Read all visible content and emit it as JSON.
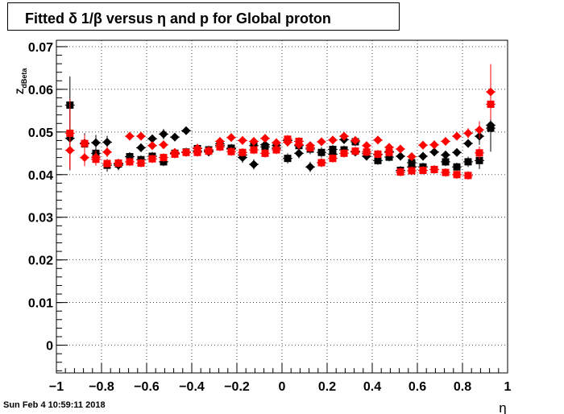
{
  "title": "Fitted δ 1/β versus η and p for Global proton",
  "timestamp": "Sun Feb  4 10:59:11 2018",
  "chart_data": {
    "type": "scatter",
    "title": "Fitted δ 1/β versus η and p for Global proton",
    "xlabel": "η",
    "ylabel": "Z_dBeta",
    "xlim": [
      -1,
      1
    ],
    "ylim": [
      -0.0065,
      0.0715
    ],
    "xticks": [
      -1,
      -0.8,
      -0.6,
      -0.4,
      -0.2,
      0,
      0.2,
      0.4,
      0.6,
      0.8,
      1
    ],
    "xtick_labels": [
      "−1",
      "−0.8",
      "−0.6",
      "−0.4",
      "−0.2",
      "0",
      "0.2",
      "0.4",
      "0.6",
      "0.8",
      "1"
    ],
    "yticks": [
      0,
      0.01,
      0.02,
      0.03,
      0.04,
      0.05,
      0.06,
      0.07
    ],
    "ytick_labels": [
      "0",
      "0.01",
      "0.02",
      "0.03",
      "0.04",
      "0.05",
      "0.06",
      "0.07"
    ],
    "grid": true,
    "series": [
      {
        "color": "#000000",
        "marker": "square",
        "x": [
          -0.94,
          -0.875,
          -0.825,
          -0.775,
          -0.725,
          -0.675,
          -0.625,
          -0.575,
          -0.525,
          -0.475,
          -0.425,
          -0.375,
          -0.325,
          -0.275,
          -0.225,
          -0.175,
          -0.125,
          -0.075,
          -0.025,
          0.025,
          0.075,
          0.125,
          0.175,
          0.225,
          0.275,
          0.325,
          0.375,
          0.425,
          0.475,
          0.525,
          0.575,
          0.625,
          0.675,
          0.725,
          0.775,
          0.825,
          0.875,
          0.925
        ],
        "y": [
          0.0563,
          0.0472,
          0.045,
          0.0422,
          0.0425,
          0.0442,
          0.0435,
          0.0443,
          0.043,
          0.045,
          0.0453,
          0.0461,
          0.0458,
          0.0468,
          0.0462,
          0.0446,
          0.0468,
          0.0465,
          0.0468,
          0.0438,
          0.0468,
          0.046,
          0.0452,
          0.0459,
          0.0458,
          0.0477,
          0.0449,
          0.0433,
          0.0441,
          0.041,
          0.0428,
          0.0418,
          0.0412,
          0.043,
          0.0418,
          0.043,
          0.0433,
          0.0509
        ],
        "err": [
          0.0067,
          0.0025,
          0.002,
          0.0015,
          0.001,
          0.001,
          0.001,
          0.001,
          0.001,
          0.001,
          0.001,
          0.001,
          0.001,
          0.001,
          0.001,
          0.001,
          0.001,
          0.001,
          0.001,
          0.0012,
          0.001,
          0.0012,
          0.0012,
          0.001,
          0.001,
          0.001,
          0.001,
          0.001,
          0.001,
          0.001,
          0.001,
          0.001,
          0.001,
          0.001,
          0.001,
          0.0012,
          0.002,
          0.0055
        ]
      },
      {
        "color": "#000000",
        "marker": "diamond",
        "x": [
          -0.94,
          -0.875,
          -0.825,
          -0.775,
          -0.725,
          -0.675,
          -0.625,
          -0.575,
          -0.525,
          -0.475,
          -0.425,
          -0.375,
          -0.325,
          -0.275,
          -0.225,
          -0.175,
          -0.125,
          -0.075,
          -0.025,
          0.025,
          0.075,
          0.125,
          0.175,
          0.225,
          0.275,
          0.325,
          0.375,
          0.425,
          0.475,
          0.525,
          0.575,
          0.625,
          0.675,
          0.725,
          0.775,
          0.825,
          0.875,
          0.925
        ],
        "y": [
          0.0485,
          0.0474,
          0.0475,
          0.0476,
          0.0422,
          0.0442,
          0.0463,
          0.0484,
          0.0495,
          0.0488,
          0.0503,
          0.0455,
          0.0453,
          0.0472,
          0.046,
          0.044,
          0.0424,
          0.047,
          0.0462,
          0.048,
          0.045,
          0.0418,
          0.0428,
          0.0448,
          0.0482,
          0.0453,
          0.0443,
          0.0447,
          0.0454,
          0.0443,
          0.0418,
          0.0443,
          0.0453,
          0.0446,
          0.0452,
          0.0473,
          0.049,
          0.0516
        ],
        "err": [
          0.0075,
          0.0022,
          0.0018,
          0.0015,
          0.0012,
          0.001,
          0.001,
          0.001,
          0.0012,
          0.001,
          0.001,
          0.0012,
          0.001,
          0.001,
          0.001,
          0.0012,
          0.0012,
          0.0012,
          0.001,
          0.0012,
          0.0012,
          0.0012,
          0.001,
          0.001,
          0.001,
          0.001,
          0.001,
          0.001,
          0.001,
          0.001,
          0.001,
          0.001,
          0.001,
          0.001,
          0.001,
          0.001,
          0.002,
          0.0062
        ]
      },
      {
        "color": "#ff0000",
        "marker": "square",
        "x": [
          -0.94,
          -0.875,
          -0.825,
          -0.775,
          -0.725,
          -0.675,
          -0.625,
          -0.575,
          -0.525,
          -0.475,
          -0.425,
          -0.375,
          -0.325,
          -0.275,
          -0.225,
          -0.175,
          -0.125,
          -0.075,
          -0.025,
          0.025,
          0.075,
          0.125,
          0.175,
          0.225,
          0.275,
          0.325,
          0.375,
          0.425,
          0.475,
          0.525,
          0.575,
          0.625,
          0.675,
          0.725,
          0.775,
          0.825,
          0.875,
          0.925
        ],
        "y": [
          0.0497,
          0.0473,
          0.0436,
          0.0426,
          0.0427,
          0.043,
          0.0427,
          0.0437,
          0.044,
          0.0448,
          0.0452,
          0.0452,
          0.0455,
          0.0465,
          0.0454,
          0.0452,
          0.0458,
          0.045,
          0.0458,
          0.0483,
          0.0478,
          0.0463,
          0.0428,
          0.0438,
          0.045,
          0.0455,
          0.0453,
          0.0448,
          0.0452,
          0.0406,
          0.0409,
          0.041,
          0.0412,
          0.0405,
          0.04,
          0.0398,
          0.0451,
          0.0565
        ],
        "err": [
          0.008,
          0.002,
          0.0015,
          0.001,
          0.001,
          0.001,
          0.001,
          0.001,
          0.001,
          0.001,
          0.001,
          0.001,
          0.001,
          0.001,
          0.001,
          0.001,
          0.001,
          0.001,
          0.001,
          0.001,
          0.001,
          0.001,
          0.001,
          0.001,
          0.001,
          0.001,
          0.001,
          0.001,
          0.001,
          0.001,
          0.001,
          0.001,
          0.001,
          0.001,
          0.001,
          0.001,
          0.0015,
          0.0035
        ]
      },
      {
        "color": "#ff0000",
        "marker": "diamond",
        "x": [
          -0.94,
          -0.875,
          -0.825,
          -0.775,
          -0.725,
          -0.675,
          -0.625,
          -0.575,
          -0.525,
          -0.475,
          -0.425,
          -0.375,
          -0.325,
          -0.275,
          -0.225,
          -0.175,
          -0.125,
          -0.075,
          -0.025,
          0.025,
          0.075,
          0.125,
          0.175,
          0.225,
          0.275,
          0.325,
          0.375,
          0.425,
          0.475,
          0.525,
          0.575,
          0.625,
          0.675,
          0.725,
          0.775,
          0.825,
          0.875,
          0.925
        ],
        "y": [
          0.0457,
          0.044,
          0.0441,
          0.0453,
          0.0427,
          0.049,
          0.049,
          0.0468,
          0.047,
          0.0452,
          0.0452,
          0.0462,
          0.0456,
          0.0478,
          0.0487,
          0.048,
          0.0478,
          0.0485,
          0.0475,
          0.0476,
          0.047,
          0.0468,
          0.0477,
          0.0481,
          0.049,
          0.048,
          0.0468,
          0.0481,
          0.0464,
          0.046,
          0.0442,
          0.0469,
          0.047,
          0.0478,
          0.049,
          0.0497,
          0.0505,
          0.0594
        ],
        "err": [
          0.0045,
          0.002,
          0.0015,
          0.0012,
          0.001,
          0.001,
          0.001,
          0.001,
          0.001,
          0.001,
          0.001,
          0.001,
          0.001,
          0.001,
          0.001,
          0.001,
          0.001,
          0.001,
          0.001,
          0.001,
          0.001,
          0.001,
          0.001,
          0.001,
          0.001,
          0.001,
          0.001,
          0.001,
          0.001,
          0.001,
          0.001,
          0.001,
          0.001,
          0.001,
          0.001,
          0.0012,
          0.002,
          0.0065
        ]
      }
    ]
  }
}
